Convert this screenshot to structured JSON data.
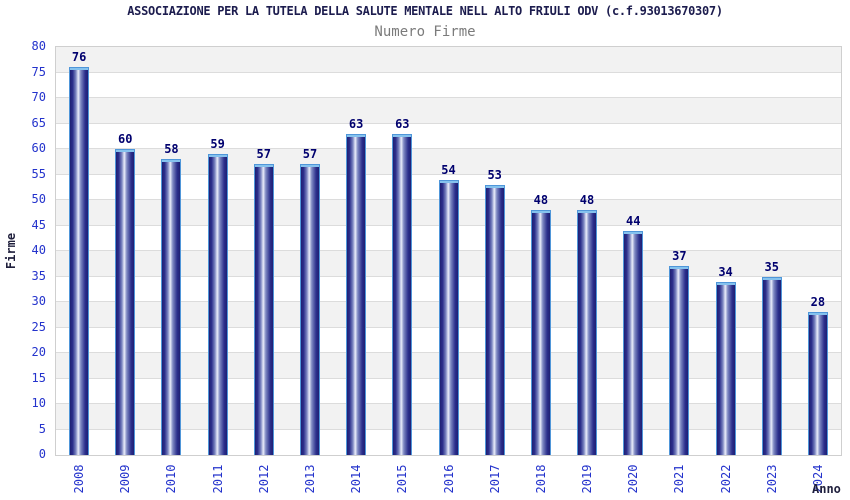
{
  "chart_data": {
    "type": "bar",
    "title": "ASSOCIAZIONE PER LA TUTELA DELLA SALUTE MENTALE NELL ALTO FRIULI ODV (c.f.93013670307)",
    "subtitle": "Numero Firme",
    "categories": [
      "2008",
      "2009",
      "2010",
      "2011",
      "2012",
      "2013",
      "2014",
      "2015",
      "2016",
      "2017",
      "2018",
      "2019",
      "2020",
      "2021",
      "2022",
      "2023",
      "2024"
    ],
    "values": [
      76,
      60,
      58,
      59,
      57,
      57,
      63,
      63,
      54,
      53,
      48,
      48,
      44,
      37,
      34,
      35,
      28
    ],
    "xlabel": "Anno",
    "ylabel": "Firme",
    "ylim": [
      0,
      80
    ],
    "ytick_step": 5,
    "grid": "horizontal-bands-alternating",
    "legend": "none"
  },
  "colors": {
    "title": "#1c1c4e",
    "subtitle": "#7b7b7b",
    "axis_tick_blue": "#2433cc",
    "value_label_navy": "#00006e",
    "axis_title": "#1f1f3c",
    "band_gray": "#f2f2f2",
    "bar_edge": "#1f1f73",
    "bar_highlight": "#e9ecfa",
    "bar_border": "#4f96d9",
    "bar_cap": "#85c2ee"
  }
}
